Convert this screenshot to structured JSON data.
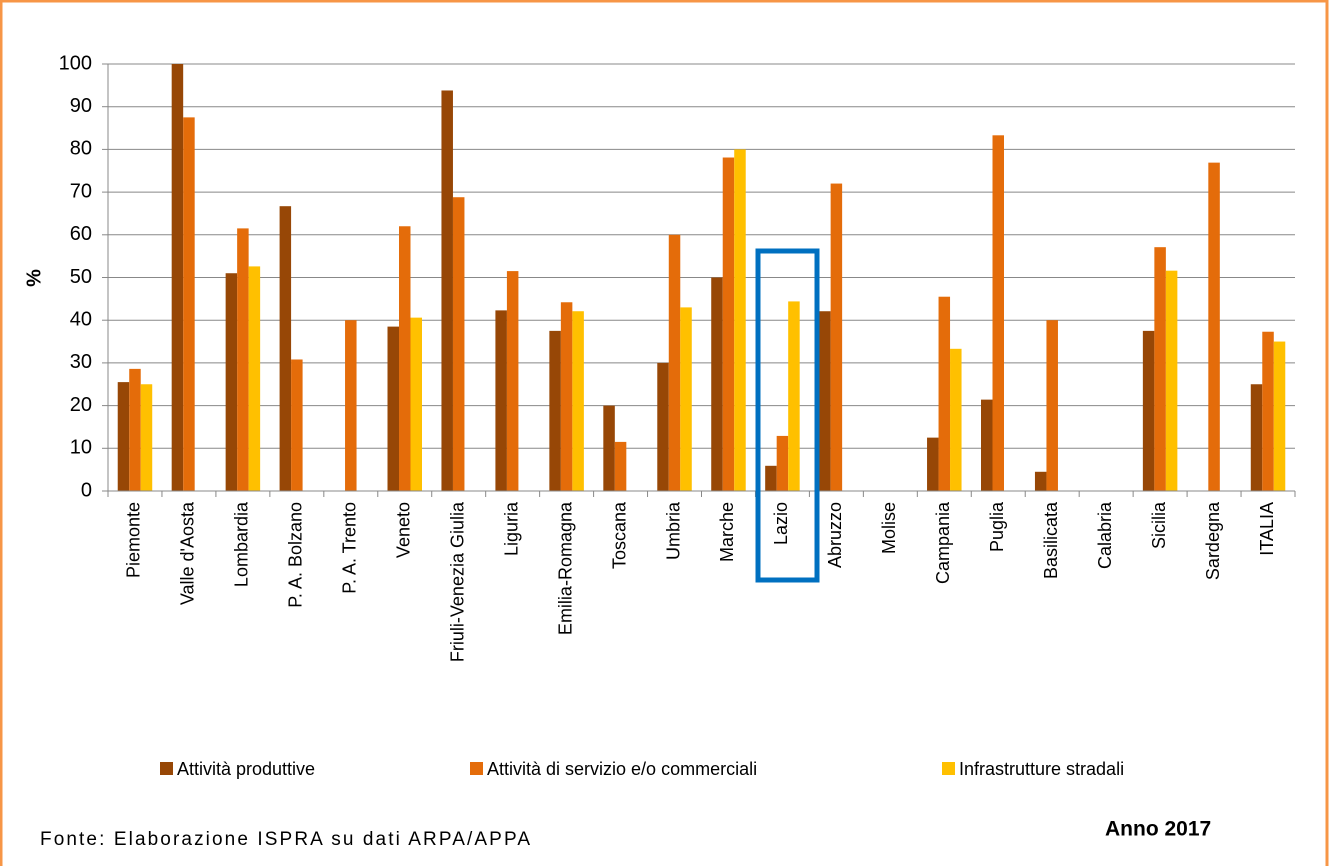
{
  "chart_data": {
    "type": "bar",
    "y_label": "%",
    "categories": [
      "Piemonte",
      "Valle d'Aosta",
      "Lombardia",
      "P. A. Bolzano",
      "P. A. Trento",
      "Veneto",
      "Friuli-Venezia Giulia",
      "Liguria",
      "Emilia-Romagna",
      "Toscana",
      "Umbria",
      "Marche",
      "Lazio",
      "Abruzzo",
      "Molise",
      "Campania",
      "Puglia",
      "Basilicata",
      "Calabria",
      "Sicilia",
      "Sardegna",
      "ITALIA"
    ],
    "series": [
      {
        "name": "Attività produttive",
        "color": "#974706",
        "values": [
          25.5,
          100,
          51,
          66.7,
          null,
          38.5,
          93.8,
          42.3,
          37.5,
          20,
          30,
          50,
          5.9,
          42.1,
          null,
          12.5,
          21.4,
          4.5,
          null,
          37.5,
          null,
          25
        ]
      },
      {
        "name": "Attività di servizio e/o commerciali",
        "color": "#E46C0A",
        "values": [
          28.6,
          87.5,
          61.5,
          30.8,
          40,
          62,
          68.8,
          51.5,
          44.2,
          11.5,
          60,
          78.1,
          12.9,
          72,
          null,
          45.5,
          83.3,
          40,
          null,
          57.1,
          76.9,
          37.3
        ]
      },
      {
        "name": "Infrastrutture stradali",
        "color": "#FFC000",
        "values": [
          25,
          null,
          52.6,
          null,
          null,
          40.6,
          null,
          null,
          42.1,
          null,
          43,
          80,
          44.4,
          null,
          null,
          33.3,
          null,
          null,
          null,
          51.6,
          null,
          35
        ]
      }
    ],
    "ylim": [
      0,
      100
    ],
    "yticks": [
      0,
      10,
      20,
      30,
      40,
      50,
      60,
      70,
      80,
      90,
      100
    ],
    "grid": true,
    "legend": "bottom",
    "source": "Fonte: Elaborazione ISPRA su dati ARPA/APPA",
    "annotation": "Anno 2017"
  }
}
